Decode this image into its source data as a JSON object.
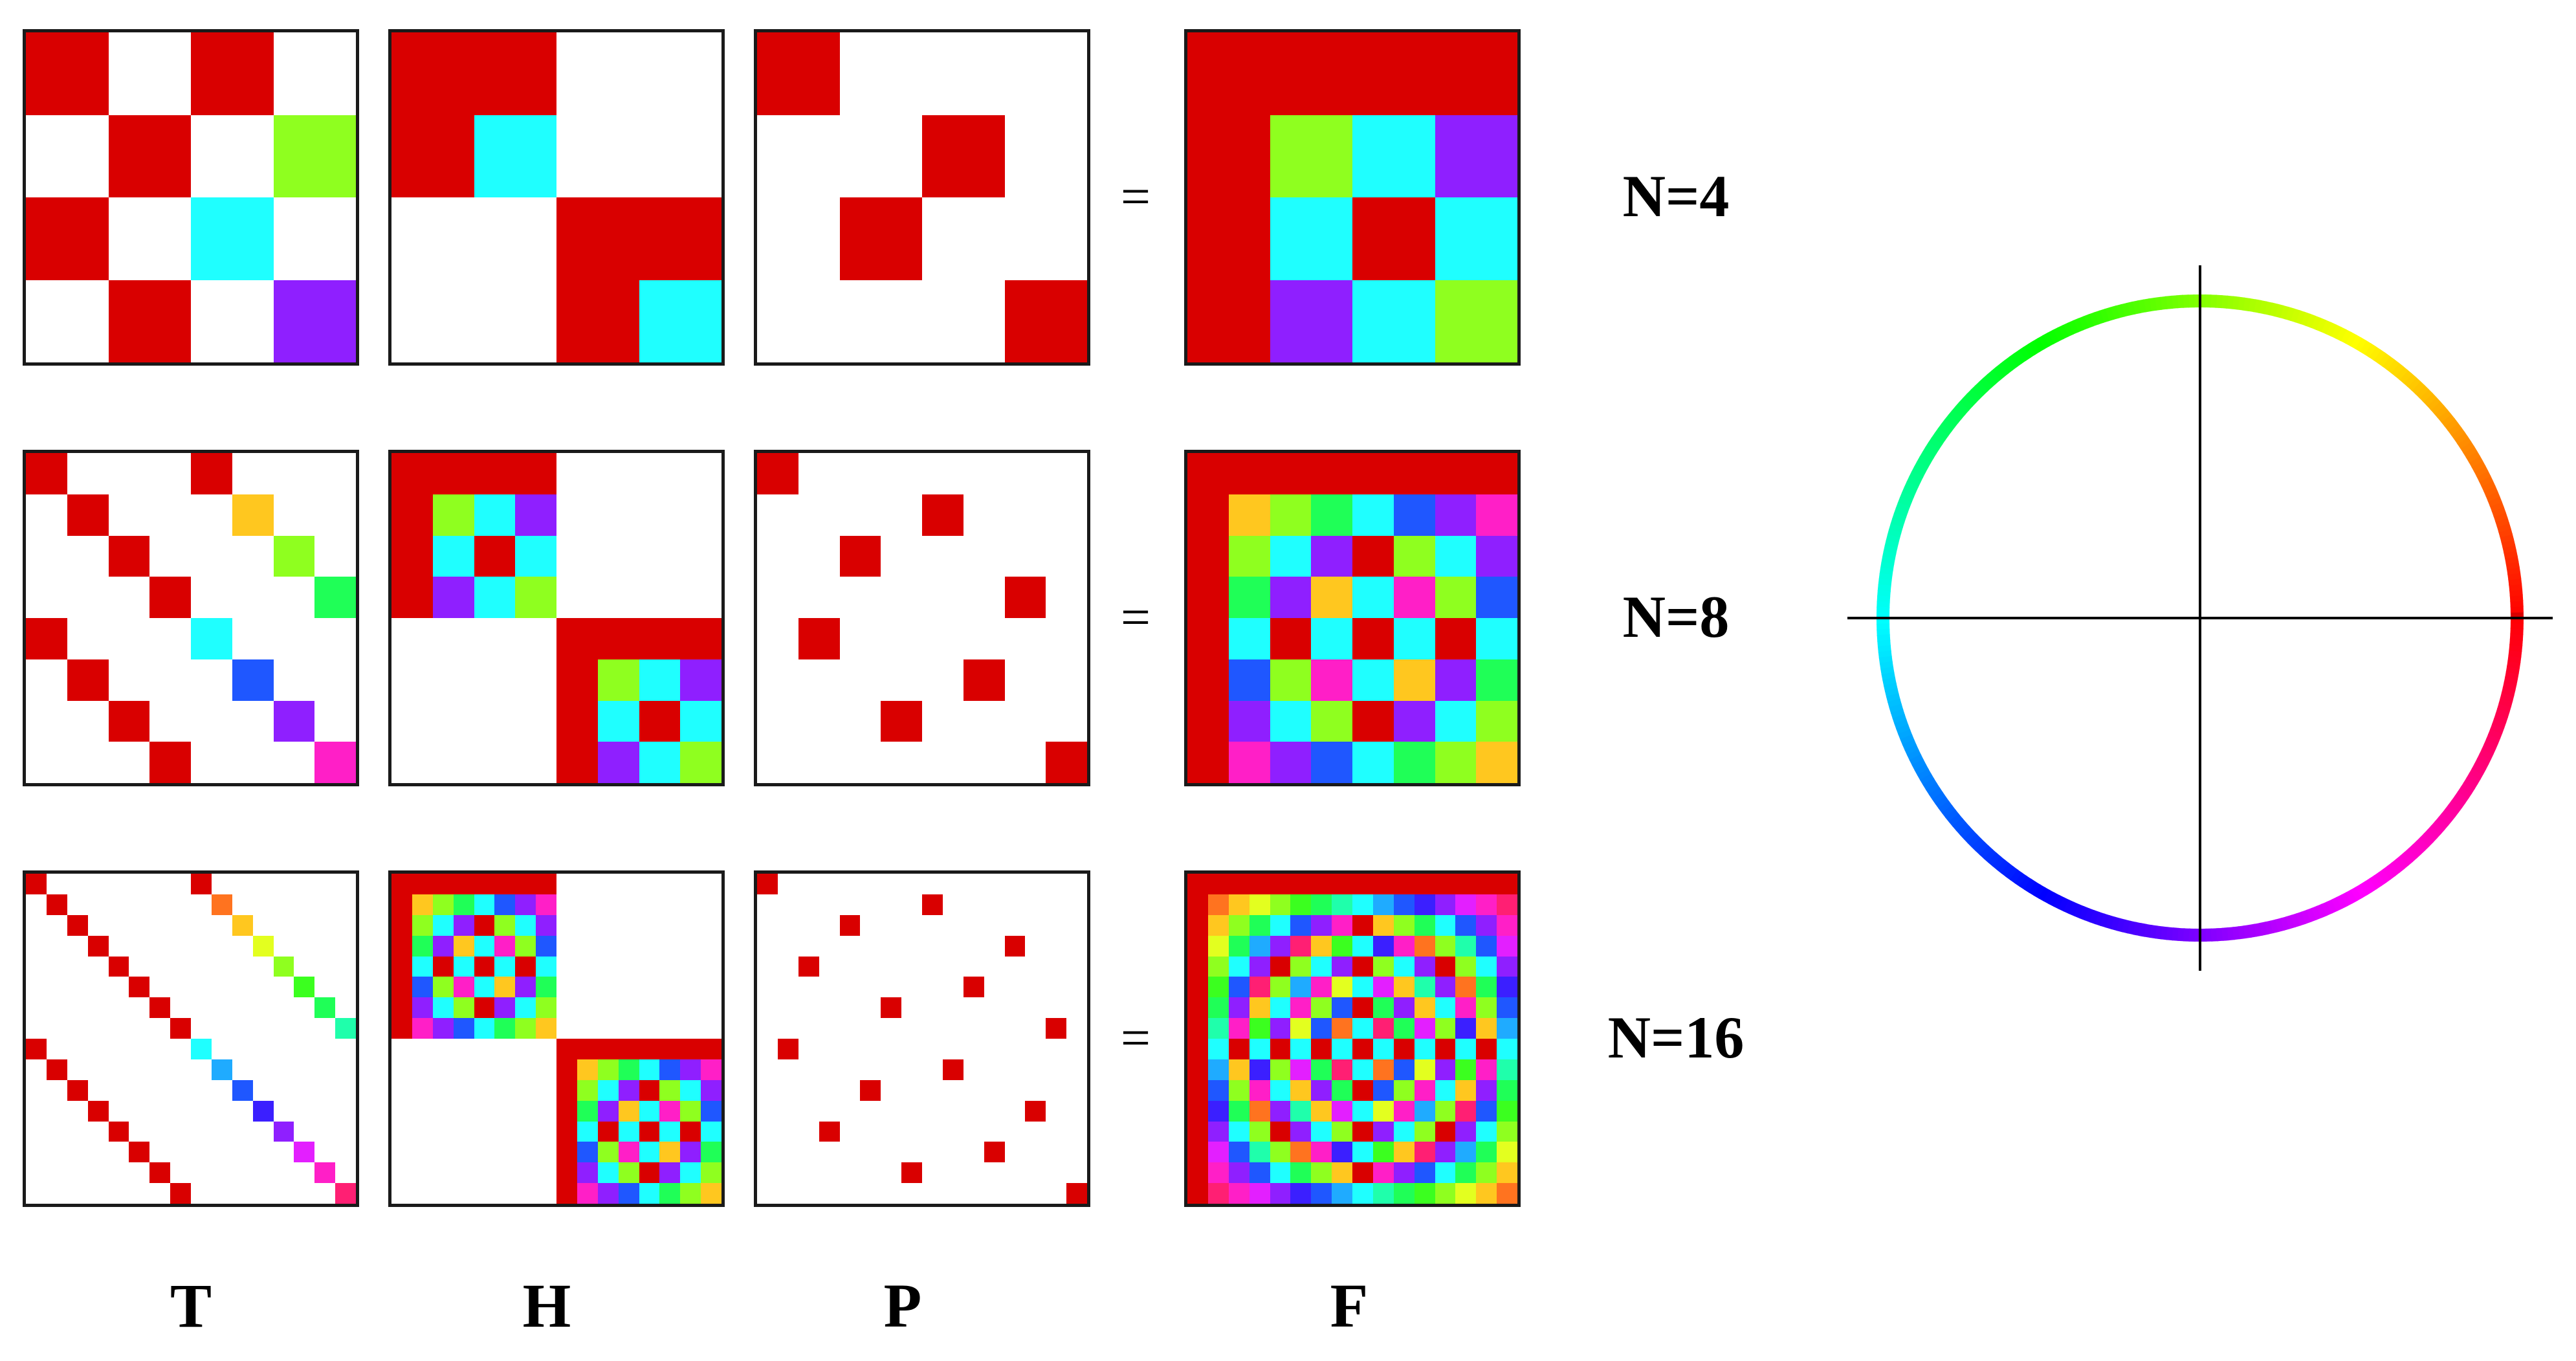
{
  "diagram": {
    "rows": [
      {
        "n": 4,
        "label": "N=4",
        "equals": "="
      },
      {
        "n": 8,
        "label": "N=8",
        "equals": "="
      },
      {
        "n": 16,
        "label": "N=16",
        "equals": "="
      }
    ],
    "columns": [
      {
        "key": "T",
        "label": "T"
      },
      {
        "key": "H",
        "label": "H"
      },
      {
        "key": "P",
        "label": "P"
      },
      {
        "key": "F",
        "label": "F"
      }
    ],
    "colors": {
      "phase_zero": "#d90000",
      "empty": "#ffffff",
      "frame": "#1a1a1a",
      "axes": "#000000"
    },
    "legend": {
      "type": "phase-color-wheel",
      "stops": [
        "#d90000",
        "#e07010",
        "#f5f040",
        "#90f040",
        "#70f0c0",
        "#60b8f0",
        "#1818ff",
        "#8000ff",
        "#e000e0",
        "#d90000"
      ]
    }
  }
}
